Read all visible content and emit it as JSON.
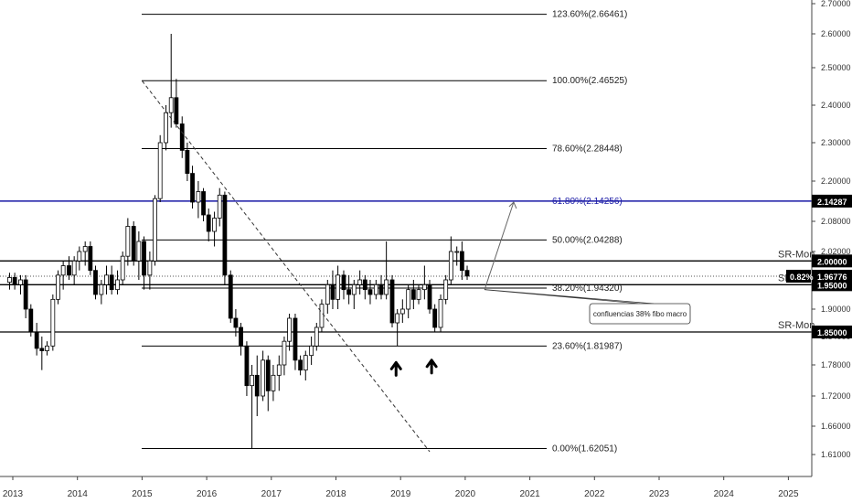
{
  "chart_data": {
    "type": "candlestick",
    "title": "",
    "xlabel": "",
    "ylabel": "",
    "ylim": [
      1.57,
      2.71
    ],
    "x_ticks": [
      "2013",
      "2014",
      "2015",
      "2016",
      "2017",
      "2018",
      "2019",
      "2020",
      "2021",
      "2022",
      "2023",
      "2024",
      "2025"
    ],
    "y_ticks": [
      "1.61000",
      "1.66000",
      "1.72000",
      "1.78000",
      "1.84000",
      "1.90000",
      "1.96000",
      "2.02000",
      "2.08000",
      "2.14000",
      "2.20000",
      "2.30000",
      "2.40000",
      "2.50000",
      "2.60000",
      "2.70000"
    ],
    "fib_levels": [
      {
        "value": 2.66461,
        "label": "123.60%(2.66461)"
      },
      {
        "value": 2.46525,
        "label": "100.00%(2.46525)"
      },
      {
        "value": 2.28448,
        "label": "78.60%(2.28448)"
      },
      {
        "value": 2.14256,
        "label": "61.80%(2.14256)"
      },
      {
        "value": 2.04288,
        "label": "50.00%(2.04288)"
      },
      {
        "value": 1.9432,
        "label": "38.20%(1.94320)"
      },
      {
        "value": 1.81987,
        "label": "23.60%(1.81987)"
      },
      {
        "value": 1.62051,
        "label": "0.00%(1.62051)"
      }
    ],
    "sr_levels": [
      {
        "value": 2.0,
        "label": "SR-Mon",
        "badge": "2.00000"
      },
      {
        "value": 1.95,
        "label": "SR-Mon",
        "badge": "1.95000"
      },
      {
        "value": 1.85,
        "label": "SR-Mon",
        "badge": "1.85000"
      }
    ],
    "highlight_level": {
      "value": 2.14287,
      "badge": "2.14287",
      "color": "#1a1aa6"
    },
    "current_price": {
      "value": 1.96776,
      "badge": "1.96776",
      "change": "0.82%"
    },
    "annotation": "confluencias 38% fibo macro",
    "candles": [
      {
        "t": 2012.95,
        "o": 1.955,
        "h": 1.975,
        "l": 1.94,
        "c": 1.965
      },
      {
        "t": 2013.03,
        "o": 1.965,
        "h": 1.975,
        "l": 1.94,
        "c": 1.95
      },
      {
        "t": 2013.12,
        "o": 1.95,
        "h": 1.97,
        "l": 1.93,
        "c": 1.96
      },
      {
        "t": 2013.2,
        "o": 1.96,
        "h": 1.97,
        "l": 1.88,
        "c": 1.9
      },
      {
        "t": 2013.28,
        "o": 1.9,
        "h": 1.91,
        "l": 1.84,
        "c": 1.85
      },
      {
        "t": 2013.37,
        "o": 1.85,
        "h": 1.87,
        "l": 1.8,
        "c": 1.815
      },
      {
        "t": 2013.45,
        "o": 1.815,
        "h": 1.84,
        "l": 1.77,
        "c": 1.81
      },
      {
        "t": 2013.53,
        "o": 1.81,
        "h": 1.83,
        "l": 1.8,
        "c": 1.82
      },
      {
        "t": 2013.62,
        "o": 1.82,
        "h": 1.93,
        "l": 1.81,
        "c": 1.92
      },
      {
        "t": 2013.7,
        "o": 1.92,
        "h": 1.98,
        "l": 1.91,
        "c": 1.97
      },
      {
        "t": 2013.78,
        "o": 1.97,
        "h": 2.0,
        "l": 1.94,
        "c": 1.99
      },
      {
        "t": 2013.87,
        "o": 1.99,
        "h": 2.01,
        "l": 1.96,
        "c": 1.97
      },
      {
        "t": 2013.95,
        "o": 1.97,
        "h": 2.01,
        "l": 1.95,
        "c": 2.0
      },
      {
        "t": 2014.03,
        "o": 2.0,
        "h": 2.03,
        "l": 1.98,
        "c": 2.02
      },
      {
        "t": 2014.12,
        "o": 2.02,
        "h": 2.04,
        "l": 1.99,
        "c": 2.03
      },
      {
        "t": 2014.2,
        "o": 2.03,
        "h": 2.04,
        "l": 1.97,
        "c": 1.98
      },
      {
        "t": 2014.28,
        "o": 1.98,
        "h": 1.99,
        "l": 1.92,
        "c": 1.93
      },
      {
        "t": 2014.37,
        "o": 1.93,
        "h": 1.96,
        "l": 1.91,
        "c": 1.95
      },
      {
        "t": 2014.45,
        "o": 1.95,
        "h": 1.99,
        "l": 1.93,
        "c": 1.97
      },
      {
        "t": 2014.53,
        "o": 1.97,
        "h": 1.99,
        "l": 1.93,
        "c": 1.94
      },
      {
        "t": 2014.62,
        "o": 1.94,
        "h": 1.98,
        "l": 1.93,
        "c": 1.96
      },
      {
        "t": 2014.7,
        "o": 1.96,
        "h": 2.02,
        "l": 1.95,
        "c": 2.01
      },
      {
        "t": 2014.78,
        "o": 2.01,
        "h": 2.09,
        "l": 1.99,
        "c": 2.07
      },
      {
        "t": 2014.87,
        "o": 2.07,
        "h": 2.08,
        "l": 1.99,
        "c": 2.0
      },
      {
        "t": 2014.95,
        "o": 2.0,
        "h": 2.06,
        "l": 1.96,
        "c": 2.04
      },
      {
        "t": 2015.03,
        "o": 2.04,
        "h": 2.05,
        "l": 1.94,
        "c": 1.97
      },
      {
        "t": 2015.12,
        "o": 1.97,
        "h": 2.02,
        "l": 1.94,
        "c": 2.0
      },
      {
        "t": 2015.2,
        "o": 2.0,
        "h": 2.16,
        "l": 1.99,
        "c": 2.15
      },
      {
        "t": 2015.28,
        "o": 2.15,
        "h": 2.32,
        "l": 2.14,
        "c": 2.3
      },
      {
        "t": 2015.37,
        "o": 2.3,
        "h": 2.4,
        "l": 2.28,
        "c": 2.38
      },
      {
        "t": 2015.45,
        "o": 2.38,
        "h": 2.6,
        "l": 2.34,
        "c": 2.42
      },
      {
        "t": 2015.53,
        "o": 2.42,
        "h": 2.47,
        "l": 2.34,
        "c": 2.35
      },
      {
        "t": 2015.62,
        "o": 2.35,
        "h": 2.37,
        "l": 2.26,
        "c": 2.28
      },
      {
        "t": 2015.7,
        "o": 2.28,
        "h": 2.3,
        "l": 2.2,
        "c": 2.22
      },
      {
        "t": 2015.78,
        "o": 2.22,
        "h": 2.24,
        "l": 2.12,
        "c": 2.14
      },
      {
        "t": 2015.87,
        "o": 2.14,
        "h": 2.2,
        "l": 2.09,
        "c": 2.17
      },
      {
        "t": 2015.95,
        "o": 2.17,
        "h": 2.18,
        "l": 2.08,
        "c": 2.1
      },
      {
        "t": 2016.03,
        "o": 2.1,
        "h": 2.12,
        "l": 2.04,
        "c": 2.06
      },
      {
        "t": 2016.12,
        "o": 2.06,
        "h": 2.11,
        "l": 2.03,
        "c": 2.09
      },
      {
        "t": 2016.2,
        "o": 2.09,
        "h": 2.18,
        "l": 2.07,
        "c": 2.16
      },
      {
        "t": 2016.28,
        "o": 2.16,
        "h": 2.17,
        "l": 1.95,
        "c": 1.97
      },
      {
        "t": 2016.37,
        "o": 1.97,
        "h": 1.98,
        "l": 1.87,
        "c": 1.88
      },
      {
        "t": 2016.45,
        "o": 1.88,
        "h": 1.9,
        "l": 1.84,
        "c": 1.86
      },
      {
        "t": 2016.53,
        "o": 1.86,
        "h": 1.87,
        "l": 1.8,
        "c": 1.82
      },
      {
        "t": 2016.62,
        "o": 1.82,
        "h": 1.83,
        "l": 1.72,
        "c": 1.74
      },
      {
        "t": 2016.7,
        "o": 1.74,
        "h": 1.78,
        "l": 1.62,
        "c": 1.76
      },
      {
        "t": 2016.78,
        "o": 1.76,
        "h": 1.8,
        "l": 1.68,
        "c": 1.72
      },
      {
        "t": 2016.87,
        "o": 1.72,
        "h": 1.81,
        "l": 1.71,
        "c": 1.79
      },
      {
        "t": 2016.95,
        "o": 1.79,
        "h": 1.8,
        "l": 1.69,
        "c": 1.73
      },
      {
        "t": 2017.03,
        "o": 1.73,
        "h": 1.78,
        "l": 1.71,
        "c": 1.76
      },
      {
        "t": 2017.12,
        "o": 1.76,
        "h": 1.8,
        "l": 1.73,
        "c": 1.78
      },
      {
        "t": 2017.2,
        "o": 1.78,
        "h": 1.84,
        "l": 1.76,
        "c": 1.83
      },
      {
        "t": 2017.28,
        "o": 1.83,
        "h": 1.89,
        "l": 1.81,
        "c": 1.88
      },
      {
        "t": 2017.37,
        "o": 1.88,
        "h": 1.89,
        "l": 1.77,
        "c": 1.79
      },
      {
        "t": 2017.45,
        "o": 1.79,
        "h": 1.8,
        "l": 1.76,
        "c": 1.77
      },
      {
        "t": 2017.53,
        "o": 1.77,
        "h": 1.81,
        "l": 1.75,
        "c": 1.8
      },
      {
        "t": 2017.62,
        "o": 1.8,
        "h": 1.84,
        "l": 1.78,
        "c": 1.82
      },
      {
        "t": 2017.7,
        "o": 1.82,
        "h": 1.87,
        "l": 1.81,
        "c": 1.86
      },
      {
        "t": 2017.78,
        "o": 1.86,
        "h": 1.92,
        "l": 1.85,
        "c": 1.91
      },
      {
        "t": 2017.87,
        "o": 1.91,
        "h": 1.96,
        "l": 1.89,
        "c": 1.95
      },
      {
        "t": 2017.95,
        "o": 1.95,
        "h": 1.98,
        "l": 1.9,
        "c": 1.92
      },
      {
        "t": 2018.03,
        "o": 1.92,
        "h": 1.99,
        "l": 1.9,
        "c": 1.97
      },
      {
        "t": 2018.12,
        "o": 1.97,
        "h": 1.98,
        "l": 1.92,
        "c": 1.94
      },
      {
        "t": 2018.2,
        "o": 1.94,
        "h": 1.97,
        "l": 1.91,
        "c": 1.93
      },
      {
        "t": 2018.28,
        "o": 1.93,
        "h": 1.96,
        "l": 1.9,
        "c": 1.95
      },
      {
        "t": 2018.37,
        "o": 1.95,
        "h": 1.98,
        "l": 1.93,
        "c": 1.96
      },
      {
        "t": 2018.45,
        "o": 1.96,
        "h": 1.97,
        "l": 1.92,
        "c": 1.94
      },
      {
        "t": 2018.53,
        "o": 1.94,
        "h": 1.96,
        "l": 1.91,
        "c": 1.93
      },
      {
        "t": 2018.62,
        "o": 1.93,
        "h": 1.96,
        "l": 1.92,
        "c": 1.95
      },
      {
        "t": 2018.7,
        "o": 1.95,
        "h": 1.97,
        "l": 1.92,
        "c": 1.93
      },
      {
        "t": 2018.78,
        "o": 1.93,
        "h": 2.04,
        "l": 1.92,
        "c": 1.96
      },
      {
        "t": 2018.87,
        "o": 1.96,
        "h": 1.97,
        "l": 1.86,
        "c": 1.87
      },
      {
        "t": 2018.95,
        "o": 1.87,
        "h": 1.9,
        "l": 1.82,
        "c": 1.89
      },
      {
        "t": 2019.03,
        "o": 1.89,
        "h": 1.92,
        "l": 1.87,
        "c": 1.9
      },
      {
        "t": 2019.12,
        "o": 1.9,
        "h": 1.95,
        "l": 1.88,
        "c": 1.94
      },
      {
        "t": 2019.2,
        "o": 1.94,
        "h": 1.96,
        "l": 1.9,
        "c": 1.92
      },
      {
        "t": 2019.28,
        "o": 1.92,
        "h": 1.95,
        "l": 1.91,
        "c": 1.94
      },
      {
        "t": 2019.37,
        "o": 1.94,
        "h": 1.99,
        "l": 1.92,
        "c": 1.95
      },
      {
        "t": 2019.45,
        "o": 1.95,
        "h": 1.96,
        "l": 1.89,
        "c": 1.9
      },
      {
        "t": 2019.53,
        "o": 1.9,
        "h": 1.91,
        "l": 1.85,
        "c": 1.86
      },
      {
        "t": 2019.62,
        "o": 1.86,
        "h": 1.93,
        "l": 1.85,
        "c": 1.92
      },
      {
        "t": 2019.7,
        "o": 1.92,
        "h": 1.97,
        "l": 1.91,
        "c": 1.96
      },
      {
        "t": 2019.78,
        "o": 1.96,
        "h": 2.05,
        "l": 1.95,
        "c": 2.02
      },
      {
        "t": 2019.87,
        "o": 2.02,
        "h": 2.03,
        "l": 1.99,
        "c": 2.02
      },
      {
        "t": 2019.95,
        "o": 2.02,
        "h": 2.04,
        "l": 1.96,
        "c": 1.98
      },
      {
        "t": 2020.03,
        "o": 1.98,
        "h": 1.99,
        "l": 1.96,
        "c": 1.968
      }
    ]
  }
}
